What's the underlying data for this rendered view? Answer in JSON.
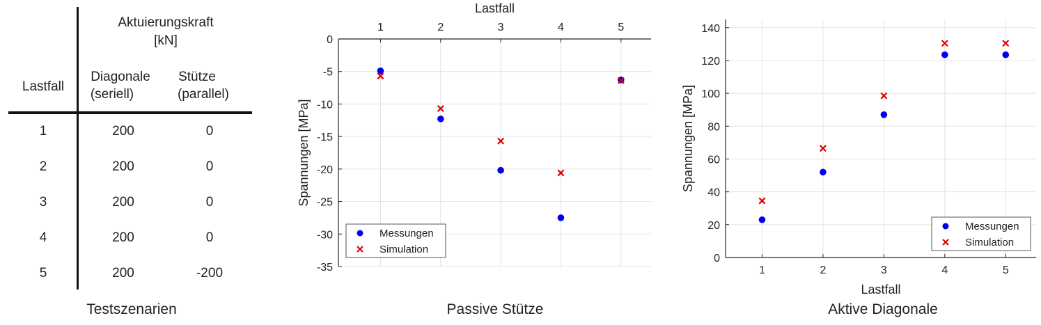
{
  "table": {
    "header_group": "Aktuierungskraft",
    "header_unit": "[kN]",
    "col_lastfall": "Lastfall",
    "col_diag_1": "Diagonale",
    "col_diag_2": "(seriell)",
    "col_stuetze_1": "Stütze",
    "col_stuetze_2": "(parallel)",
    "rows": [
      {
        "lastfall": "1",
        "diagonale": "200",
        "stuetze": "0"
      },
      {
        "lastfall": "2",
        "diagonale": "200",
        "stuetze": "0"
      },
      {
        "lastfall": "3",
        "diagonale": "200",
        "stuetze": "0"
      },
      {
        "lastfall": "4",
        "diagonale": "200",
        "stuetze": "0"
      },
      {
        "lastfall": "5",
        "diagonale": "200",
        "stuetze": "-200"
      }
    ],
    "caption": "Testszenarien"
  },
  "chart_data": [
    {
      "type": "scatter",
      "title": "",
      "caption": "Passive Stütze",
      "xlabel": "Lastfall",
      "ylabel": "Spannungen [MPa]",
      "x_axis_position": "top",
      "x": [
        1,
        2,
        3,
        4,
        5
      ],
      "xticks": [
        "1",
        "2",
        "3",
        "4",
        "5"
      ],
      "xlim": [
        0.3,
        5.5
      ],
      "ylim": [
        -35,
        0
      ],
      "yticks": [
        "0",
        "-5",
        "-10",
        "-15",
        "-20",
        "-25",
        "-30",
        "-35"
      ],
      "ytick_values": [
        0,
        -5,
        -10,
        -15,
        -20,
        -25,
        -30,
        -35
      ],
      "grid": true,
      "legend_position": "bottom-left",
      "series": [
        {
          "name": "Messungen",
          "marker": "circle",
          "color": "#0000ee",
          "values": [
            -4.9,
            -12.3,
            -20.2,
            -27.5,
            -6.3
          ]
        },
        {
          "name": "Simulation",
          "marker": "x",
          "color": "#dd0000",
          "values": [
            -5.7,
            -10.7,
            -15.7,
            -20.6,
            -6.4
          ]
        }
      ]
    },
    {
      "type": "scatter",
      "title": "",
      "caption": "Aktive Diagonale",
      "xlabel": "Lastfall",
      "ylabel": "Spannungen [MPa]",
      "x_axis_position": "bottom",
      "x": [
        1,
        2,
        3,
        4,
        5
      ],
      "xticks": [
        "1",
        "2",
        "3",
        "4",
        "5"
      ],
      "xlim": [
        0.4,
        5.5
      ],
      "ylim": [
        0,
        145
      ],
      "yticks": [
        "0",
        "20",
        "40",
        "60",
        "80",
        "100",
        "120",
        "140"
      ],
      "ytick_values": [
        0,
        20,
        40,
        60,
        80,
        100,
        120,
        140
      ],
      "grid": true,
      "legend_position": "bottom-right",
      "series": [
        {
          "name": "Messungen",
          "marker": "circle",
          "color": "#0000ee",
          "values": [
            23,
            52,
            87,
            123.5,
            123.5
          ]
        },
        {
          "name": "Simulation",
          "marker": "x",
          "color": "#dd0000",
          "values": [
            34.5,
            66.5,
            98.5,
            130.5,
            130.5
          ]
        }
      ]
    }
  ]
}
